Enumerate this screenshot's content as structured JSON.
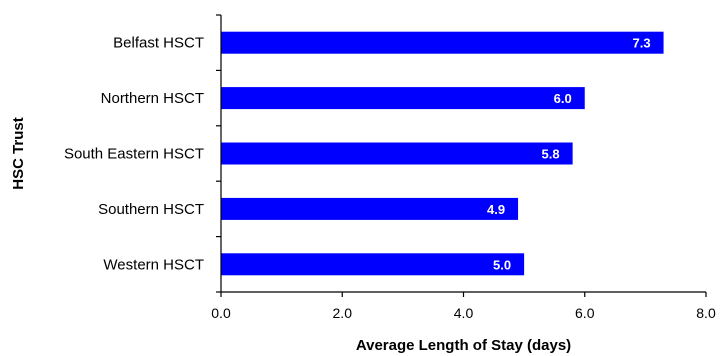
{
  "chart_data": {
    "type": "bar",
    "orientation": "horizontal",
    "title": "",
    "xlabel": "Average Length of Stay (days)",
    "ylabel": "HSC Trust",
    "categories": [
      "Belfast HSCT",
      "Northern HSCT",
      "South Eastern HSCT",
      "Southern HSCT",
      "Western HSCT"
    ],
    "values": [
      7.3,
      6.0,
      5.8,
      4.9,
      5.0
    ],
    "value_labels": [
      "7.3",
      "6.0",
      "5.8",
      "4.9",
      "5.0"
    ],
    "xlim": [
      0,
      8
    ],
    "xticks": [
      0,
      2,
      4,
      6,
      8
    ],
    "xtick_labels": [
      "0.0",
      "2.0",
      "4.0",
      "6.0",
      "8.0"
    ],
    "grid": false,
    "legend": "none",
    "bar_color": "#0000ff",
    "data_label_color": "#ffffff"
  }
}
